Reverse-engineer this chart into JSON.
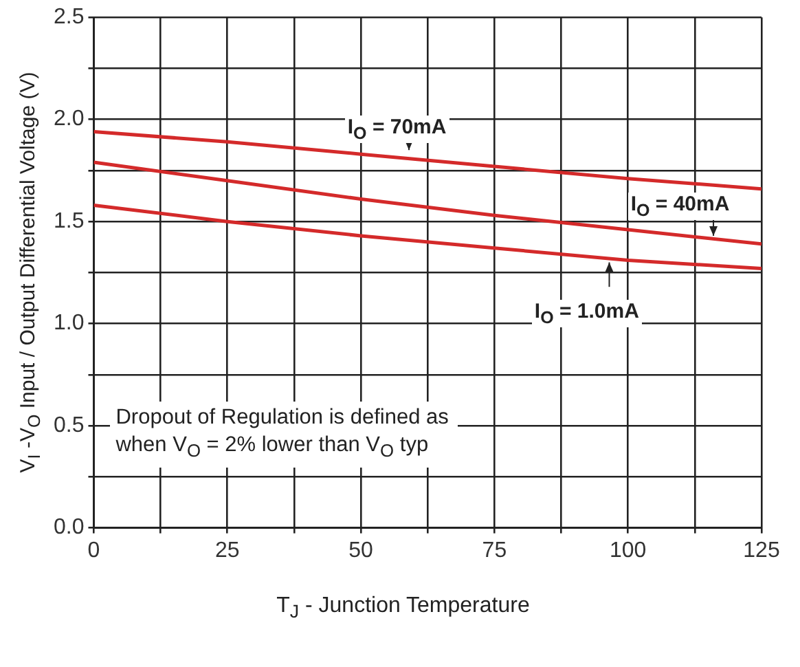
{
  "chart_data": {
    "type": "line",
    "xlabel": "T$_{J}$  - Junction Temperature",
    "ylabel": "V$_{I}$ -V$_{O}$ Input / Output Differential Voltage (V)",
    "x": [
      0,
      25,
      50,
      75,
      100,
      125
    ],
    "series": [
      {
        "name": "I$_{O}$ = 70mA",
        "color": "#d42a2a",
        "values": [
          1.94,
          1.89,
          1.83,
          1.77,
          1.71,
          1.66
        ]
      },
      {
        "name": "I$_{O}$ = 40mA",
        "color": "#d42a2a",
        "values": [
          1.79,
          1.7,
          1.61,
          1.53,
          1.46,
          1.39
        ]
      },
      {
        "name": "I$_{O}$ = 1.0mA",
        "color": "#d42a2a",
        "values": [
          1.58,
          1.5,
          1.43,
          1.37,
          1.31,
          1.27
        ]
      }
    ],
    "xlim": [
      0,
      125
    ],
    "ylim": [
      0,
      2.5
    ],
    "xticks": [
      0,
      {
        "value": 12.5,
        "label": null
      },
      25,
      {
        "value": 37.5,
        "label": null
      },
      50,
      {
        "value": 62.5,
        "label": null
      },
      75,
      {
        "value": 87.5,
        "label": null
      },
      100,
      {
        "value": 112.5,
        "label": null
      },
      125
    ],
    "yticks": [
      {
        "value": 0,
        "label": "0.0"
      },
      {
        "value": 0.25,
        "label": null
      },
      {
        "value": 0.5,
        "label": "0.5"
      },
      {
        "value": 0.75,
        "label": null
      },
      {
        "value": 1,
        "label": "1.0"
      },
      {
        "value": 1.25,
        "label": null
      },
      {
        "value": 1.5,
        "label": "1.5"
      },
      {
        "value": 1.75,
        "label": null
      },
      {
        "value": 2,
        "label": "2.0"
      },
      {
        "value": 2.25,
        "label": null
      },
      {
        "value": 2.5,
        "label": "2.5"
      }
    ],
    "grid": true,
    "legend": false,
    "marker": "none",
    "line_style": "solid",
    "annotations": [
      "Dropout of Regulation is defined as when V$_{O}$ = 2% lower than V$_{O}$ typ"
    ]
  }
}
